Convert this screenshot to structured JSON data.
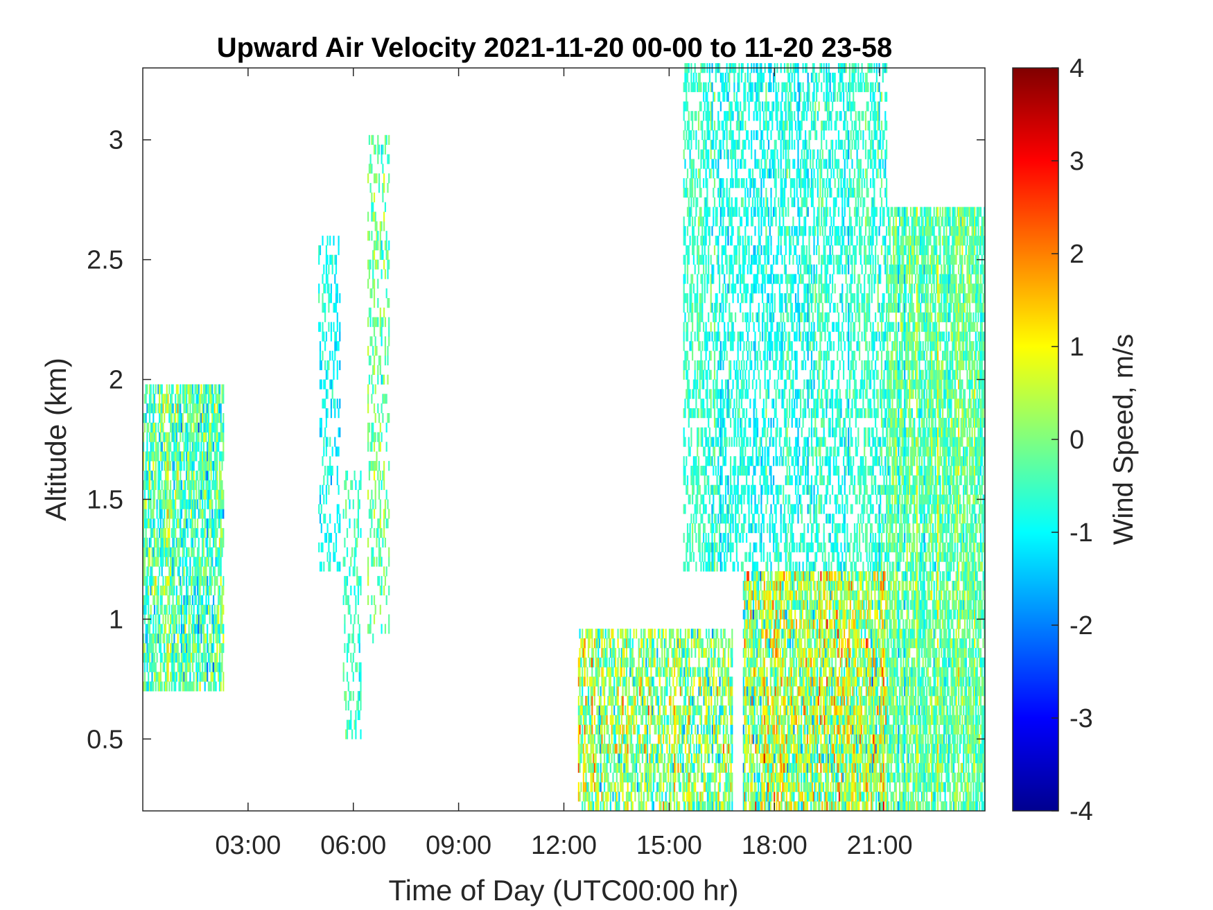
{
  "chart_data": {
    "type": "heatmap",
    "title": "Upward Air Velocity 2021-11-20 00-00 to 11-20 23-58",
    "xlabel": "Time of Day (UTC00:00 hr)",
    "ylabel": "Altitude (km)",
    "colorbar_label": "Wind Speed, m/s",
    "xlim": [
      0,
      24
    ],
    "ylim": [
      0.2,
      3.3
    ],
    "x_ticks": [
      {
        "value": 3,
        "label": "03:00"
      },
      {
        "value": 6,
        "label": "06:00"
      },
      {
        "value": 9,
        "label": "09:00"
      },
      {
        "value": 12,
        "label": "12:00"
      },
      {
        "value": 15,
        "label": "15:00"
      },
      {
        "value": 18,
        "label": "18:00"
      },
      {
        "value": 21,
        "label": "21:00"
      }
    ],
    "y_ticks": [
      {
        "value": 0.5,
        "label": "0.5"
      },
      {
        "value": 1,
        "label": "1"
      },
      {
        "value": 1.5,
        "label": "1.5"
      },
      {
        "value": 2,
        "label": "2"
      },
      {
        "value": 2.5,
        "label": "2.5"
      },
      {
        "value": 3,
        "label": "3"
      }
    ],
    "colorbar": {
      "colormap": "jet",
      "clim": [
        -4,
        4
      ],
      "ticks": [
        {
          "value": 4,
          "label": "4"
        },
        {
          "value": 3,
          "label": "3"
        },
        {
          "value": 2,
          "label": "2"
        },
        {
          "value": 1,
          "label": "1"
        },
        {
          "value": 0,
          "label": "0"
        },
        {
          "value": -1,
          "label": "-1"
        },
        {
          "value": -2,
          "label": "-2"
        },
        {
          "value": -3,
          "label": "-3"
        },
        {
          "value": -4,
          "label": "-4"
        }
      ]
    },
    "data_regions": [
      {
        "t_start": 0.0,
        "t_end": 2.3,
        "alt_min": 0.7,
        "alt_max": 1.95,
        "mean_speed": -0.3,
        "spread": 1.2,
        "density": 0.7
      },
      {
        "t_start": 5.0,
        "t_end": 5.6,
        "alt_min": 1.2,
        "alt_max": 2.6,
        "mean_speed": -0.8,
        "spread": 0.5,
        "density": 0.3
      },
      {
        "t_start": 5.7,
        "t_end": 6.2,
        "alt_min": 0.5,
        "alt_max": 1.6,
        "mean_speed": -0.4,
        "spread": 0.5,
        "density": 0.3
      },
      {
        "t_start": 6.4,
        "t_end": 7.0,
        "alt_min": 0.9,
        "alt_max": 3.0,
        "mean_speed": -0.2,
        "spread": 0.6,
        "density": 0.3
      },
      {
        "t_start": 12.4,
        "t_end": 16.8,
        "alt_min": 0.2,
        "alt_max": 0.95,
        "mean_speed": 0.1,
        "spread": 1.5,
        "density": 0.6
      },
      {
        "t_start": 15.4,
        "t_end": 21.2,
        "alt_min": 1.2,
        "alt_max": 3.3,
        "mean_speed": -0.7,
        "spread": 0.5,
        "density": 0.45
      },
      {
        "t_start": 17.1,
        "t_end": 21.2,
        "alt_min": 0.2,
        "alt_max": 1.2,
        "mean_speed": 0.4,
        "spread": 1.8,
        "density": 0.8
      },
      {
        "t_start": 21.2,
        "t_end": 24.0,
        "alt_min": 0.2,
        "alt_max": 2.7,
        "mean_speed": -0.2,
        "spread": 0.8,
        "density": 0.75
      }
    ]
  }
}
